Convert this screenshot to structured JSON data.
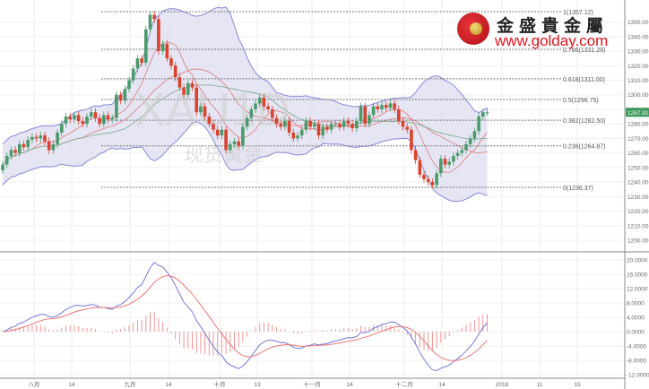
{
  "chart_data": {
    "type": "candlestick",
    "symbol_watermark": "XAU1D",
    "watermark_cn": "现货黄金",
    "x_tick_labels": [
      "八月",
      "14",
      "九月",
      "14",
      "十月",
      "13",
      "十一月",
      "14",
      "十二月",
      "14",
      "2018",
      "11",
      "15"
    ],
    "price_axis": {
      "ylim": [
        1195,
        1362
      ],
      "ticks": [
        1200,
        1210,
        1220,
        1230,
        1240,
        1250,
        1260,
        1270,
        1280,
        1290,
        1300,
        1310,
        1320,
        1330,
        1340,
        1350
      ],
      "tick_labels": [
        "1200.00",
        "1210.00",
        "1220.00",
        "1230.00",
        "1240.00",
        "1250.00",
        "1260.00",
        "1270.00",
        "1280.00",
        "1290.00",
        "1300.00",
        "1310.00",
        "1320.00",
        "1330.00",
        "1340.00",
        "1350.00"
      ]
    },
    "current_price": "1287.91",
    "closes": [
      1252,
      1258,
      1262,
      1260,
      1266,
      1264,
      1269,
      1271,
      1270,
      1272,
      1268,
      1262,
      1266,
      1274,
      1280,
      1285,
      1283,
      1286,
      1282,
      1280,
      1285,
      1288,
      1284,
      1280,
      1286,
      1283,
      1284,
      1300,
      1296,
      1304,
      1310,
      1318,
      1325,
      1322,
      1345,
      1355,
      1352,
      1330,
      1335,
      1325,
      1320,
      1312,
      1305,
      1300,
      1308,
      1305,
      1288,
      1292,
      1285,
      1280,
      1276,
      1272,
      1276,
      1262,
      1266,
      1268,
      1265,
      1278,
      1284,
      1290,
      1294,
      1298,
      1292,
      1290,
      1284,
      1280,
      1278,
      1282,
      1274,
      1270,
      1272,
      1276,
      1282,
      1278,
      1280,
      1272,
      1278,
      1276,
      1280,
      1280,
      1278,
      1282,
      1280,
      1277,
      1282,
      1292,
      1280,
      1286,
      1292,
      1290,
      1293,
      1291,
      1294,
      1290,
      1282,
      1278,
      1276,
      1262,
      1255,
      1245,
      1242,
      1240,
      1238,
      1246,
      1256,
      1252,
      1254,
      1258,
      1260,
      1262,
      1266,
      1270,
      1275,
      1285,
      1288,
      1288
    ],
    "first_open": 1248,
    "fibonacci": [
      {
        "ratio": "1",
        "value": 1357.12,
        "label": "1(1357.12)"
      },
      {
        "ratio": "0.786",
        "value": 1331.28,
        "label": "0.786(1331.28)"
      },
      {
        "ratio": "0.618",
        "value": 1311.0,
        "label": "0.618(1311.00)"
      },
      {
        "ratio": "0.5",
        "value": 1296.75,
        "label": "0.5(1296.75)"
      },
      {
        "ratio": "0.382",
        "value": 1282.5,
        "label": "0.382(1282.50)"
      },
      {
        "ratio": "0.236",
        "value": 1264.87,
        "label": "0.236(1264.87)"
      },
      {
        "ratio": "0",
        "value": 1236.37,
        "label": "0(1236.37)"
      }
    ],
    "indicators": [
      "Bollinger Bands",
      "Moving Averages",
      "MACD"
    ],
    "macd_axis": {
      "ylim": [
        -13,
        21
      ],
      "ticks": [
        20,
        16,
        12,
        8,
        4,
        0,
        -4,
        -8,
        -12
      ],
      "tick_labels": [
        "20.0000",
        "16.0000",
        "12.0000",
        "8.0000",
        "4.0000",
        "0.0000",
        "-4.0000",
        "-8.0000",
        "-12.0000"
      ]
    },
    "grid": true,
    "colors": {
      "up": "#4a9a6a",
      "down": "#d9432f",
      "band_fill": "#dcdcef",
      "band_line": "#8888dd",
      "ma_fast": "#e07a7a",
      "ma_slow": "#7aa88a",
      "macd": "#7777dd",
      "signal": "#ee7777",
      "hist": "#f08a8a",
      "price_tag": "#3c9a5c"
    }
  },
  "logo": {
    "cn": "金盛貴金屬",
    "url": "www.golday.com"
  }
}
